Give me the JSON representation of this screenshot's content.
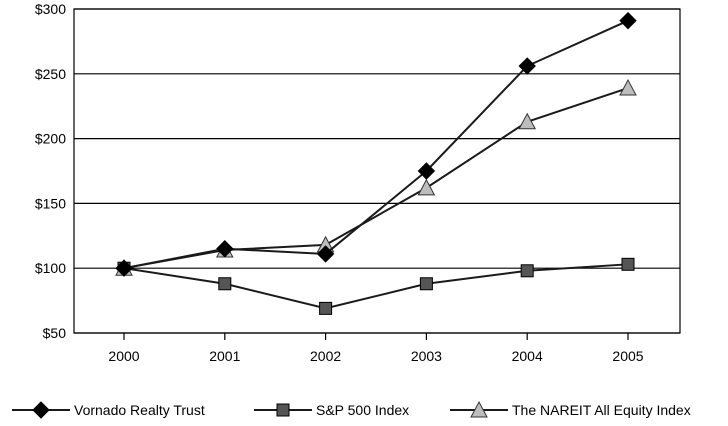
{
  "chart_data": {
    "type": "line",
    "categories": [
      "2000",
      "2001",
      "2002",
      "2003",
      "2004",
      "2005"
    ],
    "ylim": [
      50,
      300
    ],
    "yticks": [
      50,
      100,
      150,
      200,
      250,
      300
    ],
    "ytick_labels": [
      "$50",
      "$100",
      "$150",
      "$200",
      "$250",
      "$300"
    ],
    "grid": "horizontal",
    "legend_position": "bottom",
    "series": [
      {
        "name": "Vornado Realty Trust",
        "marker": "diamond",
        "color": "#000000",
        "values": [
          100,
          115,
          111,
          175,
          256,
          291
        ]
      },
      {
        "name": "S&P 500 Index",
        "marker": "square",
        "color": "#555555",
        "values": [
          100,
          88,
          69,
          88,
          98,
          103
        ]
      },
      {
        "name": "The NAREIT All Equity Index",
        "marker": "triangle",
        "color": "#bdbdbd",
        "values": [
          100,
          114,
          118,
          162,
          213,
          239
        ]
      }
    ]
  }
}
